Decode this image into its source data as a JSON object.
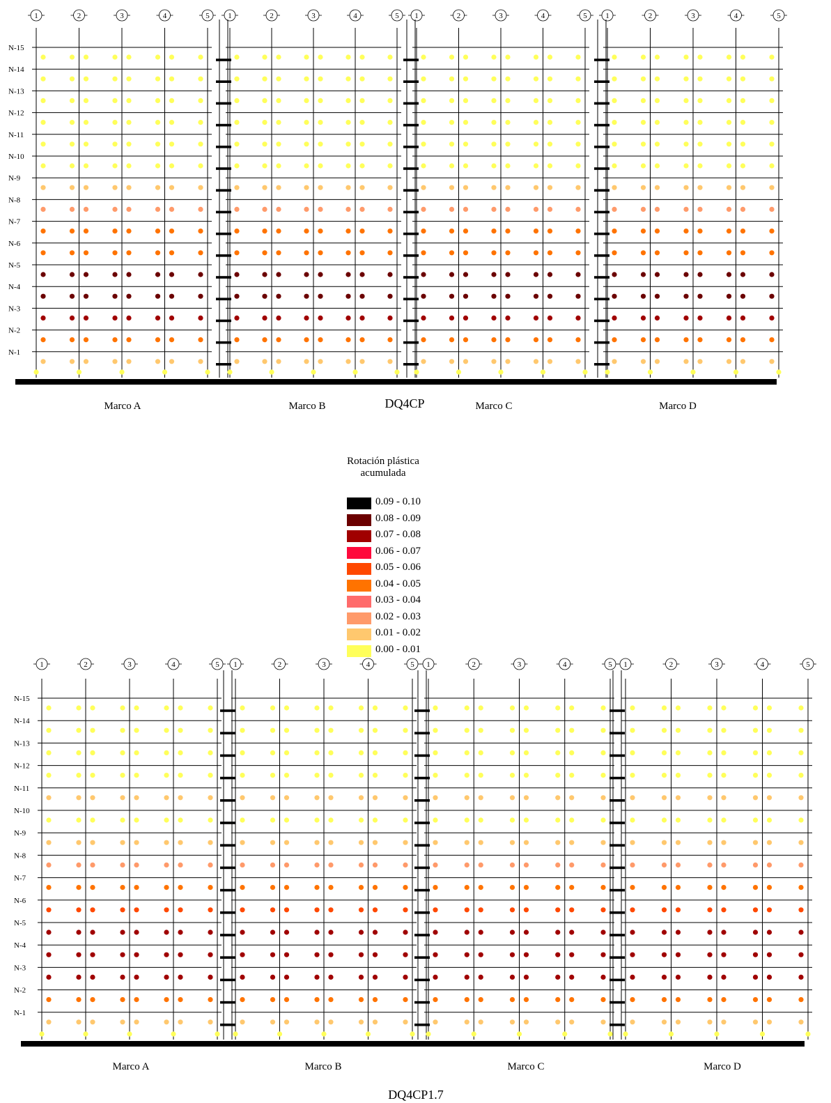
{
  "legend": {
    "title_line1": "Rotación plástica",
    "title_line2": "acumulada",
    "items": [
      {
        "label": "0.09 - 0.10",
        "color": "#000000"
      },
      {
        "label": "0.08 - 0.09",
        "color": "#6b0000"
      },
      {
        "label": "0.07 - 0.08",
        "color": "#a00000"
      },
      {
        "label": "0.06 - 0.07",
        "color": "#ff0a3c"
      },
      {
        "label": "0.05 - 0.06",
        "color": "#ff4800"
      },
      {
        "label": "0.04 - 0.05",
        "color": "#ff7300"
      },
      {
        "label": "0.03 - 0.04",
        "color": "#ff6b6b"
      },
      {
        "label": "0.02 - 0.03",
        "color": "#ff9a6a"
      },
      {
        "label": "0.01 - 0.02",
        "color": "#ffc86e"
      },
      {
        "label": "0.00 - 0.01",
        "color": "#ffff5a"
      }
    ]
  },
  "diagrams": [
    {
      "title": "DQ4CP",
      "frames": [
        {
          "label": "Marco A",
          "axes": [
            "1",
            "2",
            "3",
            "4",
            "5"
          ]
        },
        {
          "label": "Marco B",
          "axes": [
            "1",
            "2",
            "3",
            "4",
            "5"
          ]
        },
        {
          "label": "Marco C",
          "axes": [
            "1",
            "2",
            "3",
            "4",
            "5"
          ]
        },
        {
          "label": "Marco D",
          "axes": [
            "1",
            "2",
            "3",
            "4",
            "5"
          ]
        }
      ],
      "levels": [
        "N-15",
        "N-14",
        "N-13",
        "N-12",
        "N-11",
        "N-10",
        "N-9",
        "N-8",
        "N-7",
        "N-6",
        "N-5",
        "N-4",
        "N-3",
        "N-2",
        "N-1"
      ],
      "level_colors": [
        9,
        9,
        9,
        9,
        9,
        9,
        8,
        7,
        5,
        5,
        1,
        1,
        2,
        5,
        8
      ]
    },
    {
      "title": "DQ4CP1.7",
      "frames": [
        {
          "label": "Marco A",
          "axes": [
            "1",
            "2",
            "3",
            "4",
            "5"
          ]
        },
        {
          "label": "Marco B",
          "axes": [
            "1",
            "2",
            "3",
            "4",
            "5"
          ]
        },
        {
          "label": "Marco C",
          "axes": [
            "1",
            "2",
            "3",
            "4",
            "5"
          ]
        },
        {
          "label": "Marco D",
          "axes": [
            "1",
            "2",
            "3",
            "4",
            "5"
          ]
        }
      ],
      "levels": [
        "N-15",
        "N-14",
        "N-13",
        "N-12",
        "N-11",
        "N-10",
        "N-9",
        "N-8",
        "N-7",
        "N-6",
        "N-5",
        "N-4",
        "N-3",
        "N-2",
        "N-1"
      ],
      "level_colors": [
        9,
        9,
        9,
        9,
        8,
        9,
        8,
        7,
        5,
        4,
        2,
        2,
        2,
        5,
        8
      ]
    }
  ]
}
